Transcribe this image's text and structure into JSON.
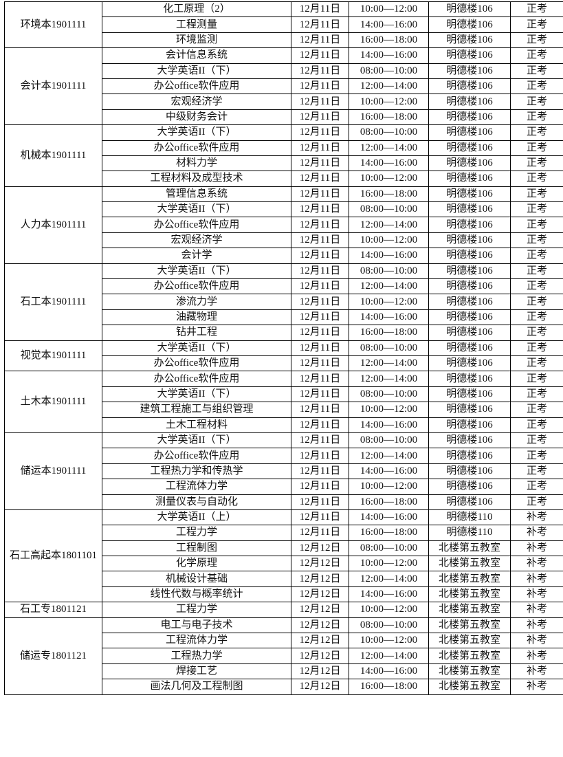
{
  "groups": [
    {
      "class": "环境本1901111",
      "exams": [
        [
          "化工原理（2）",
          "12月11日",
          "10:00—12:00",
          "明德楼106",
          "正考"
        ],
        [
          "工程测量",
          "12月11日",
          "14:00—16:00",
          "明德楼106",
          "正考"
        ],
        [
          "环境监测",
          "12月11日",
          "16:00—18:00",
          "明德楼106",
          "正考"
        ]
      ]
    },
    {
      "class": "会计本1901111",
      "exams": [
        [
          "会计信息系统",
          "12月11日",
          "14:00—16:00",
          "明德楼106",
          "正考"
        ],
        [
          "大学英语II（下）",
          "12月11日",
          "08:00—10:00",
          "明德楼106",
          "正考"
        ],
        [
          "办公office软件应用",
          "12月11日",
          "12:00—14:00",
          "明德楼106",
          "正考"
        ],
        [
          "宏观经济学",
          "12月11日",
          "10:00—12:00",
          "明德楼106",
          "正考"
        ],
        [
          "中级财务会计",
          "12月11日",
          "16:00—18:00",
          "明德楼106",
          "正考"
        ]
      ]
    },
    {
      "class": "机械本1901111",
      "exams": [
        [
          "大学英语II（下）",
          "12月11日",
          "08:00—10:00",
          "明德楼106",
          "正考"
        ],
        [
          "办公office软件应用",
          "12月11日",
          "12:00—14:00",
          "明德楼106",
          "正考"
        ],
        [
          "材料力学",
          "12月11日",
          "14:00—16:00",
          "明德楼106",
          "正考"
        ],
        [
          "工程材料及成型技术",
          "12月11日",
          "10:00—12:00",
          "明德楼106",
          "正考"
        ]
      ]
    },
    {
      "class": "人力本1901111",
      "exams": [
        [
          "管理信息系统",
          "12月11日",
          "16:00—18:00",
          "明德楼106",
          "正考"
        ],
        [
          "大学英语II（下）",
          "12月11日",
          "08:00—10:00",
          "明德楼106",
          "正考"
        ],
        [
          "办公office软件应用",
          "12月11日",
          "12:00—14:00",
          "明德楼106",
          "正考"
        ],
        [
          "宏观经济学",
          "12月11日",
          "10:00—12:00",
          "明德楼106",
          "正考"
        ],
        [
          "会计学",
          "12月11日",
          "14:00—16:00",
          "明德楼106",
          "正考"
        ]
      ]
    },
    {
      "class": "石工本1901111",
      "exams": [
        [
          "大学英语II（下）",
          "12月11日",
          "08:00—10:00",
          "明德楼106",
          "正考"
        ],
        [
          "办公office软件应用",
          "12月11日",
          "12:00—14:00",
          "明德楼106",
          "正考"
        ],
        [
          "渗流力学",
          "12月11日",
          "10:00—12:00",
          "明德楼106",
          "正考"
        ],
        [
          "油藏物理",
          "12月11日",
          "14:00—16:00",
          "明德楼106",
          "正考"
        ],
        [
          "钻井工程",
          "12月11日",
          "16:00—18:00",
          "明德楼106",
          "正考"
        ]
      ]
    },
    {
      "class": "视觉本1901111",
      "exams": [
        [
          "大学英语II（下）",
          "12月11日",
          "08:00—10:00",
          "明德楼106",
          "正考"
        ],
        [
          "办公office软件应用",
          "12月11日",
          "12:00—14:00",
          "明德楼106",
          "正考"
        ]
      ]
    },
    {
      "class": "土木本1901111",
      "exams": [
        [
          "办公office软件应用",
          "12月11日",
          "12:00—14:00",
          "明德楼106",
          "正考"
        ],
        [
          "大学英语II（下）",
          "12月11日",
          "08:00—10:00",
          "明德楼106",
          "正考"
        ],
        [
          "建筑工程施工与组织管理",
          "12月11日",
          "10:00—12:00",
          "明德楼106",
          "正考"
        ],
        [
          "土木工程材料",
          "12月11日",
          "14:00—16:00",
          "明德楼106",
          "正考"
        ]
      ]
    },
    {
      "class": "储运本1901111",
      "exams": [
        [
          "大学英语II（下）",
          "12月11日",
          "08:00—10:00",
          "明德楼106",
          "正考"
        ],
        [
          "办公office软件应用",
          "12月11日",
          "12:00—14:00",
          "明德楼106",
          "正考"
        ],
        [
          "工程热力学和传热学",
          "12月11日",
          "14:00—16:00",
          "明德楼106",
          "正考"
        ],
        [
          "工程流体力学",
          "12月11日",
          "10:00—12:00",
          "明德楼106",
          "正考"
        ],
        [
          "测量仪表与自动化",
          "12月11日",
          "16:00—18:00",
          "明德楼106",
          "正考"
        ]
      ]
    },
    {
      "class": "石工高起本1801101",
      "exams": [
        [
          "大学英语II（上）",
          "12月11日",
          "14:00—16:00",
          "明德楼110",
          "补考"
        ],
        [
          "工程力学",
          "12月11日",
          "16:00—18:00",
          "明德楼110",
          "补考"
        ],
        [
          "工程制图",
          "12月12日",
          "08:00—10:00",
          "北楼第五教室",
          "补考"
        ],
        [
          "化学原理",
          "12月12日",
          "10:00—12:00",
          "北楼第五教室",
          "补考"
        ],
        [
          "机械设计基础",
          "12月12日",
          "12:00—14:00",
          "北楼第五教室",
          "补考"
        ],
        [
          "线性代数与概率统计",
          "12月12日",
          "14:00—16:00",
          "北楼第五教室",
          "补考"
        ]
      ]
    },
    {
      "class": "石工专1801121",
      "exams": [
        [
          "工程力学",
          "12月12日",
          "10:00—12:00",
          "北楼第五教室",
          "补考"
        ]
      ]
    },
    {
      "class": "储运专1801121",
      "exams": [
        [
          "电工与电子技术",
          "12月12日",
          "08:00—10:00",
          "北楼第五教室",
          "补考"
        ],
        [
          "工程流体力学",
          "12月12日",
          "10:00—12:00",
          "北楼第五教室",
          "补考"
        ],
        [
          "工程热力学",
          "12月12日",
          "12:00—14:00",
          "北楼第五教室",
          "补考"
        ],
        [
          "焊接工艺",
          "12月12日",
          "14:00—16:00",
          "北楼第五教室",
          "补考"
        ],
        [
          "画法几何及工程制图",
          "12月12日",
          "16:00—18:00",
          "北楼第五教室",
          "补考"
        ]
      ]
    }
  ]
}
